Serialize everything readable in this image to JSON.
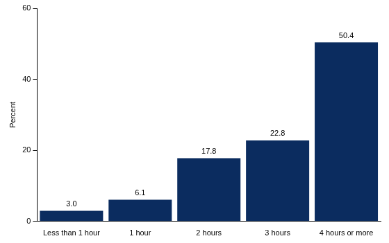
{
  "chart_data": {
    "type": "bar",
    "y_label": "Percent",
    "categories": [
      "Less than 1 hour",
      "1 hour",
      "2 hours",
      "3 hours",
      "4 hours or more"
    ],
    "values": [
      3.0,
      6.1,
      17.8,
      22.8,
      50.4
    ],
    "value_labels": [
      "3.0",
      "6.1",
      "17.8",
      "22.8",
      "50.4"
    ],
    "color": "#0b2c5f",
    "ylim": [
      0,
      60
    ],
    "yticks": [
      0,
      20,
      40,
      60
    ],
    "grid": false,
    "data_labels": true
  }
}
